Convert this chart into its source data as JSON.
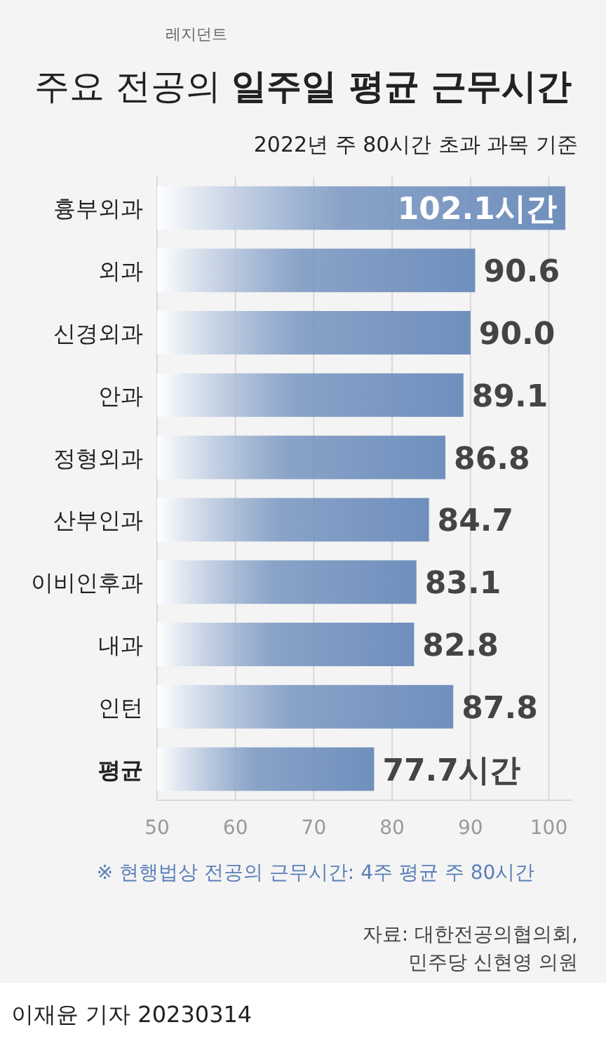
{
  "chart_data": {
    "type": "bar",
    "orientation": "horizontal",
    "title": "주요 전공의 **일주일 평균 근무시간**",
    "subtitle": "2022년 주 80시간 초과 과목 기준",
    "categories": [
      "흉부외과",
      "외과",
      "신경외과",
      "안과",
      "정형외과",
      "산부인과",
      "이비인후과",
      "내과",
      "인턴",
      "평균"
    ],
    "values": [
      102.1,
      90.6,
      90.0,
      89.1,
      86.8,
      84.7,
      83.1,
      82.8,
      87.8,
      77.7
    ],
    "value_labels": [
      "102.1시간",
      "90.6",
      "90.0",
      "89.1",
      "86.8",
      "84.7",
      "83.1",
      "82.8",
      "87.8",
      "77.7시간"
    ],
    "color": "#6f8fbd",
    "xlim": [
      50,
      103
    ],
    "xticks": [
      50,
      60,
      70,
      80,
      90,
      100
    ],
    "grid": "x",
    "annotations": [
      "레지던트",
      "※ 현행법상 전공의 근무시간: 4주 평균 주 80시간",
      "자료: 대한전공의협의회,\n민주당 신현영 의원",
      "이재윤 기자  20230314"
    ]
  }
}
